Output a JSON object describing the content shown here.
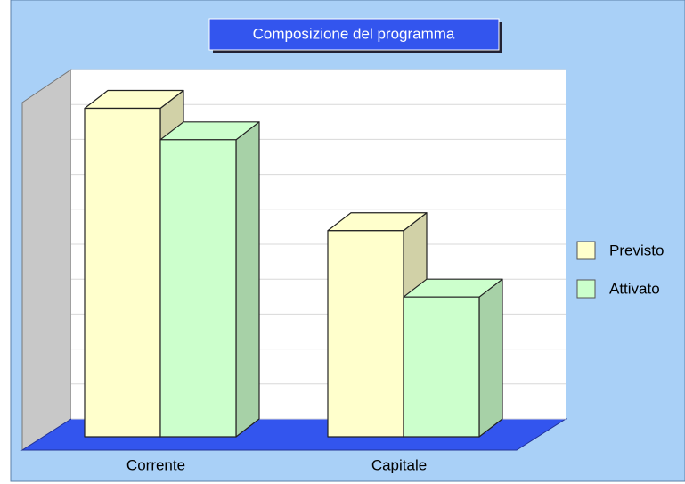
{
  "chart_data": {
    "type": "bar3d",
    "title": "Composizione del programma",
    "categories": [
      "Corrente",
      "Capitale"
    ],
    "series": [
      {
        "name": "Previsto",
        "color": "#ffffcc",
        "values": [
          9.4,
          5.9
        ]
      },
      {
        "name": "Attivato",
        "color": "#ccffcc",
        "values": [
          8.5,
          4.0
        ]
      }
    ],
    "ylim": [
      0,
      10
    ],
    "yticks": [
      0,
      1,
      2,
      3,
      4,
      5,
      6,
      7,
      8,
      9,
      10
    ],
    "grid": true,
    "legend": "right"
  }
}
